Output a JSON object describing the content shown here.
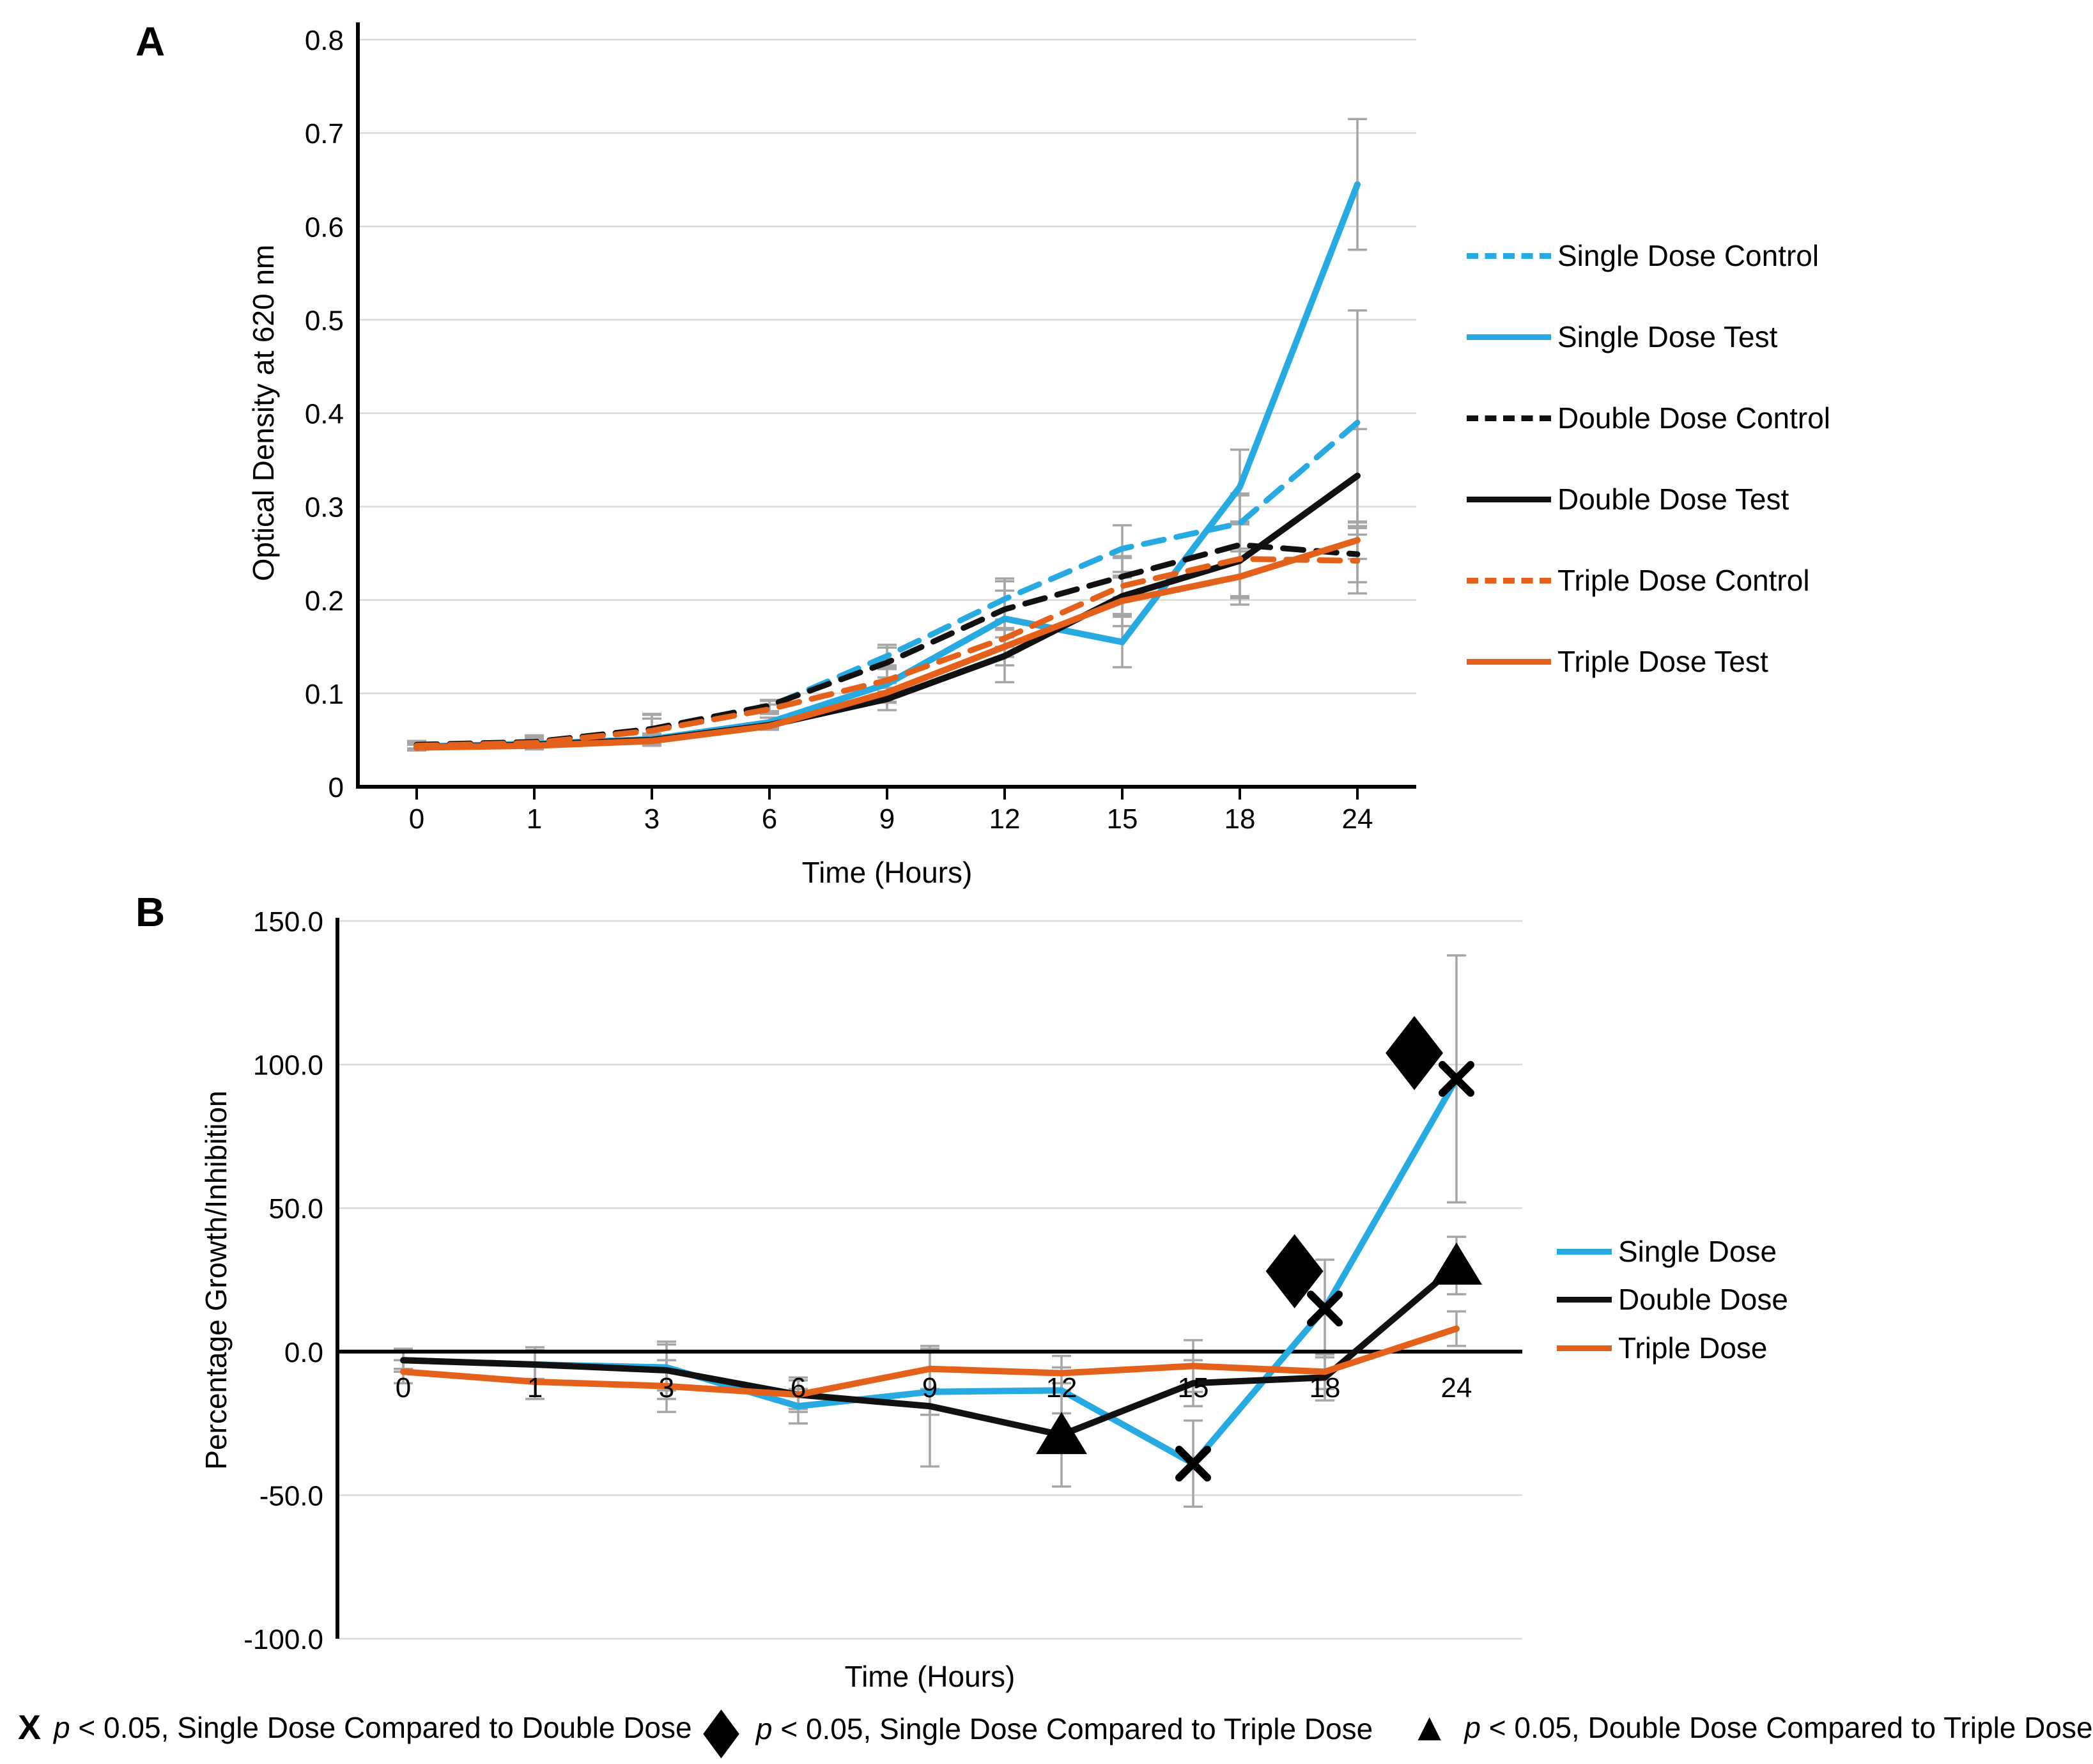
{
  "colors": {
    "single_dose": "#27AAE1",
    "double_dose": "#111111",
    "triple_dose": "#E4611B",
    "error_bar": "#A6A6A6",
    "gridline": "#D9D9D9",
    "axis": "#000000"
  },
  "panels": {
    "a_label": "A",
    "b_label": "B"
  },
  "chart_data": [
    {
      "type": "line",
      "panel": "A",
      "title": "",
      "xlabel": "Time (Hours)",
      "ylabel": "Optical Density at 620 nm",
      "x_tick_labels": [
        "0",
        "1",
        "3",
        "6",
        "9",
        "12",
        "15",
        "18",
        "24"
      ],
      "x_values": [
        0,
        1,
        3,
        6,
        9,
        12,
        15,
        18,
        24
      ],
      "y_tick_labels": [
        "0.8",
        "0.7",
        "0.6",
        "0.5",
        "0.4",
        "0.3",
        "0.2",
        "0.1",
        "0"
      ],
      "y_tick_values": [
        0.8,
        0.7,
        0.6,
        0.5,
        0.4,
        0.3,
        0.2,
        0.1,
        0
      ],
      "ylim": [
        0,
        0.8
      ],
      "grid": true,
      "legend_position": "right",
      "series": [
        {
          "name": "Single Dose Control",
          "color": "#27AAE1",
          "dash": true,
          "values": [
            0.045,
            0.048,
            0.061,
            0.086,
            0.14,
            0.201,
            0.255,
            0.282,
            0.39
          ],
          "errors": [
            0.004,
            0.007,
            0.016,
            0.006,
            0.012,
            0.022,
            0.025,
            0.03,
            0.12
          ]
        },
        {
          "name": "Single Dose Test",
          "color": "#27AAE1",
          "dash": false,
          "values": [
            0.043,
            0.046,
            0.051,
            0.069,
            0.11,
            0.18,
            0.155,
            0.321,
            0.645
          ],
          "errors": [
            0.004,
            0.005,
            0.006,
            0.005,
            0.02,
            0.03,
            0.027,
            0.04,
            0.07
          ]
        },
        {
          "name": "Double Dose Control",
          "color": "#111111",
          "dash": true,
          "values": [
            0.045,
            0.048,
            0.062,
            0.087,
            0.133,
            0.19,
            0.225,
            0.259,
            0.249
          ],
          "errors": [
            0.004,
            0.007,
            0.016,
            0.006,
            0.016,
            0.03,
            0.022,
            0.055,
            0.03
          ]
        },
        {
          "name": "Double Dose Test",
          "color": "#111111",
          "dash": false,
          "values": [
            0.042,
            0.045,
            0.05,
            0.066,
            0.094,
            0.14,
            0.204,
            0.242,
            0.333
          ],
          "errors": [
            0.003,
            0.004,
            0.005,
            0.004,
            0.012,
            0.028,
            0.02,
            0.04,
            0.05
          ]
        },
        {
          "name": "Triple Dose Control",
          "color": "#E4611B",
          "dash": true,
          "values": [
            0.044,
            0.047,
            0.06,
            0.083,
            0.114,
            0.159,
            0.215,
            0.244,
            0.242
          ],
          "errors": [
            0.004,
            0.006,
            0.013,
            0.005,
            0.012,
            0.02,
            0.03,
            0.04,
            0.035
          ]
        },
        {
          "name": "Triple Dose Test",
          "color": "#E4611B",
          "dash": false,
          "values": [
            0.042,
            0.044,
            0.049,
            0.065,
            0.101,
            0.15,
            0.199,
            0.225,
            0.264
          ],
          "errors": [
            0.003,
            0.004,
            0.005,
            0.004,
            0.01,
            0.02,
            0.027,
            0.03,
            0.02
          ]
        }
      ]
    },
    {
      "type": "line",
      "panel": "B",
      "title": "",
      "xlabel": "Time (Hours)",
      "ylabel": "Percentage Growth/Inhibition",
      "x_tick_labels": [
        "0",
        "1",
        "3",
        "6",
        "9",
        "12",
        "15",
        "18",
        "24"
      ],
      "x_values": [
        0,
        1,
        3,
        6,
        9,
        12,
        15,
        18,
        24
      ],
      "y_tick_labels": [
        "150.0",
        "100.0",
        "50.0",
        "0.0",
        "-50.0",
        "-100.0"
      ],
      "y_tick_values": [
        150,
        100,
        50,
        0,
        -50,
        -100
      ],
      "ylim": [
        -100,
        150
      ],
      "grid": true,
      "zero_line": true,
      "legend_position": "right",
      "series": [
        {
          "name": "Single Dose",
          "color": "#27AAE1",
          "dash": false,
          "values": [
            -3,
            -4.5,
            -5.5,
            -19,
            -14,
            -13.5,
            -39,
            15,
            95
          ],
          "errors": [
            4,
            6,
            8,
            6,
            8,
            8,
            15,
            17,
            43
          ]
        },
        {
          "name": "Double Dose",
          "color": "#111111",
          "dash": false,
          "values": [
            -3,
            -4.5,
            -6.5,
            -15,
            -19,
            -29,
            -11,
            -9,
            30
          ],
          "errors": [
            3,
            5,
            10,
            5,
            21,
            18,
            8,
            8,
            10
          ]
        },
        {
          "name": "Triple Dose",
          "color": "#E4611B",
          "dash": false,
          "values": [
            -7,
            -10.5,
            -12,
            -15,
            -6,
            -7.5,
            -5,
            -7,
            8
          ],
          "errors": [
            4,
            6,
            9,
            6,
            7,
            6,
            9,
            6,
            6
          ]
        }
      ],
      "markers": [
        {
          "shape": "x",
          "xi": 6,
          "value": -39
        },
        {
          "shape": "x",
          "xi": 7,
          "value": 15
        },
        {
          "shape": "x",
          "xi": 8,
          "value": 95
        },
        {
          "shape": "diamond",
          "xi": 6.77,
          "value": 28
        },
        {
          "shape": "diamond",
          "xi": 7.68,
          "value": 104
        },
        {
          "shape": "triangle",
          "xi": 5,
          "value": -29
        },
        {
          "shape": "triangle",
          "xi": 8,
          "value": 30
        }
      ]
    }
  ],
  "annotations": [
    {
      "marker": "x",
      "p": "p",
      "text": " < 0.05, Single Dose Compared to Double Dose"
    },
    {
      "marker": "diamond",
      "p": "p",
      "text": " < 0.05, Single Dose Compared to Triple Dose"
    },
    {
      "marker": "triangle",
      "p": "p",
      "text": " < 0.05, Double Dose Compared to Triple Dose"
    }
  ]
}
